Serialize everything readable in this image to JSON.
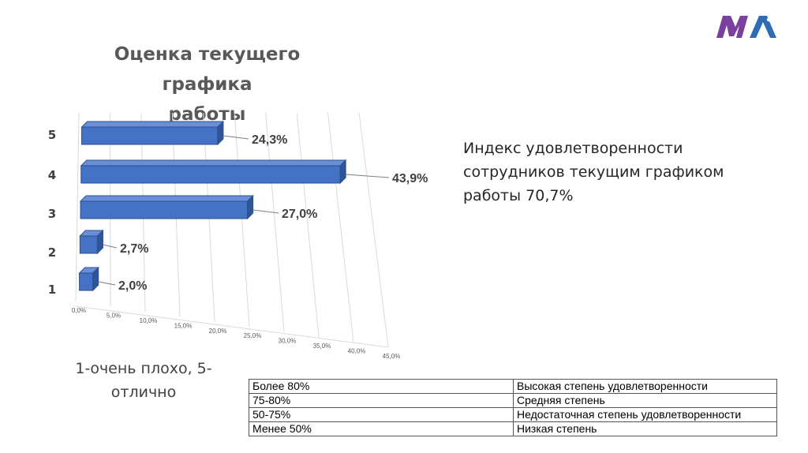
{
  "title_lines": [
    "Оценка текущего графика",
    "работы"
  ],
  "chart_data": {
    "type": "bar",
    "orientation": "horizontal",
    "title": "Оценка текущего графика работы",
    "categories": [
      "1",
      "2",
      "3",
      "4",
      "5"
    ],
    "values": [
      2.0,
      2.7,
      27.0,
      43.9,
      24.3
    ],
    "value_labels": [
      "2,0%",
      "2,7%",
      "27,0%",
      "43,9%",
      "24,3%"
    ],
    "x_ticks": [
      "0,0%",
      "5,0%",
      "10,0%",
      "15,0%",
      "20,0%",
      "25,0%",
      "30,0%",
      "35,0%",
      "40,0%",
      "45,0%"
    ],
    "xlim": [
      0,
      45
    ],
    "grid": true,
    "bar_color": "#4472C4"
  },
  "index_text": "Индекс удовлетворенности сотрудников текущим графиком работы",
  "index_value": "70,7%",
  "scale_note": "1-очень плохо, 5-отлично",
  "legend_table": [
    [
      "Более 80%",
      "Высокая степень удовлетворенности"
    ],
    [
      "75-80%",
      "Средняя степень"
    ],
    [
      "50-75%",
      "Недостаточная степень удовлетворенности"
    ],
    [
      "Менее 50%",
      "Низкая степень"
    ]
  ],
  "colors": {
    "logo_purple": "#7B3FA0",
    "logo_blue": "#2E6DB4",
    "bar": "#4472C4"
  }
}
